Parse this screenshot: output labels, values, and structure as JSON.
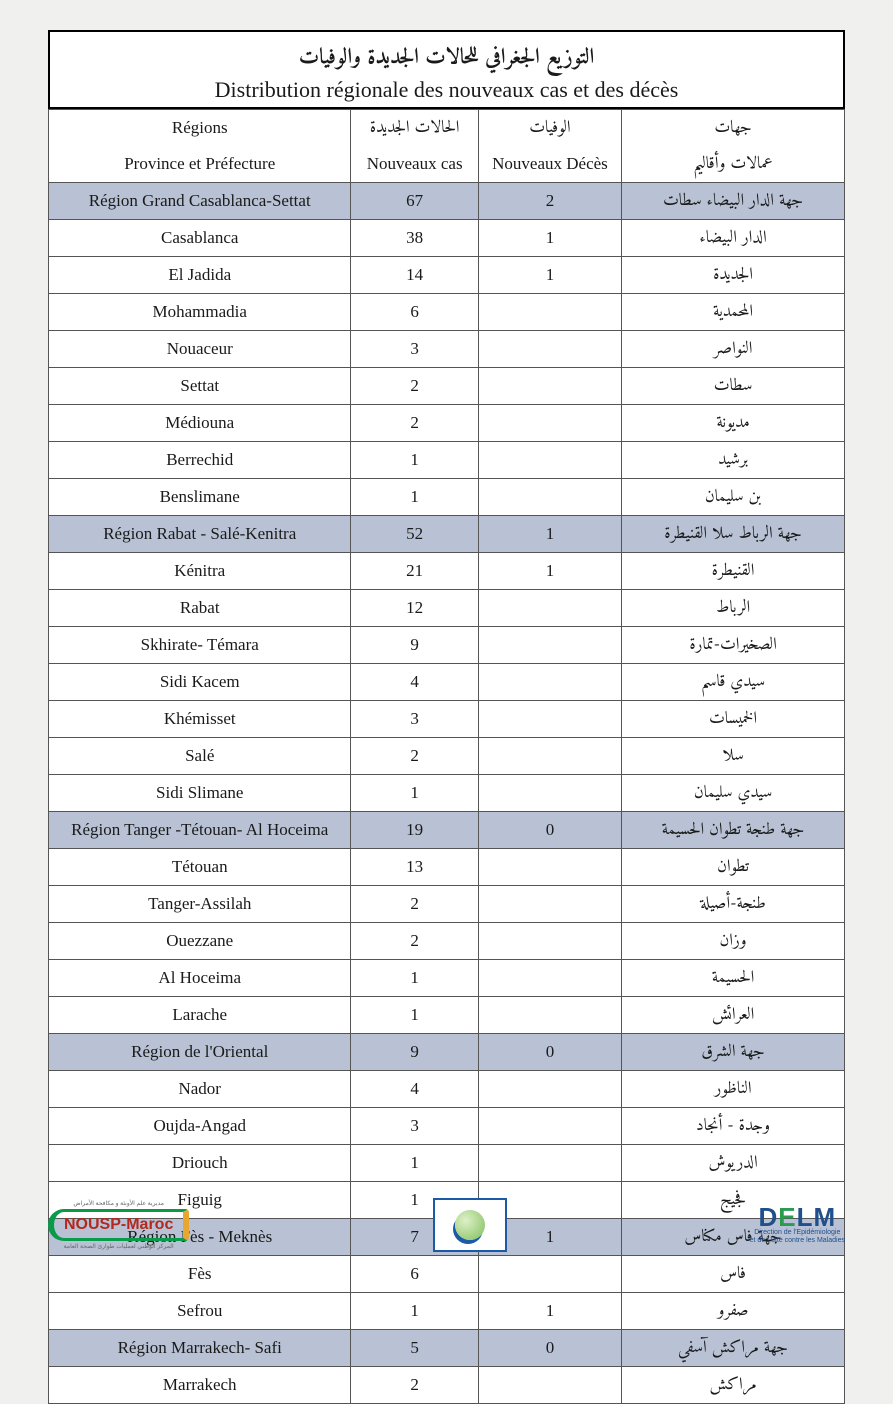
{
  "title_ar": "التوزيع الجغرافي للحالات الجديدة والوفيات",
  "title_fr": "Distribution régionale des nouveaux cas et des décès",
  "headers": {
    "fr_top": "Régions",
    "fr_bot": "Province et Préfecture",
    "cases_ar": "الحالات الجديدة",
    "cases_fr": "Nouveaux cas",
    "deaths_ar": "الوفيات",
    "deaths_fr": "Nouveaux Décès",
    "ar_top": "جهات",
    "ar_bot": "عمالات وأقاليم"
  },
  "colors": {
    "region_bg": "#b8c2d4",
    "border": "#555555",
    "page_bg": "#f0f0ee"
  },
  "rows": [
    {
      "type": "region",
      "fr": "Région Grand Casablanca-Settat",
      "cases": "67",
      "deaths": "2",
      "ar": "جهة الدار البيضاء سطات"
    },
    {
      "type": "data",
      "fr": "Casablanca",
      "cases": "38",
      "deaths": "1",
      "ar": "الدار البيضاء"
    },
    {
      "type": "data",
      "fr": "El Jadida",
      "cases": "14",
      "deaths": "1",
      "ar": "الجديدة"
    },
    {
      "type": "data",
      "fr": "Mohammadia",
      "cases": "6",
      "deaths": "",
      "ar": "المحمدية"
    },
    {
      "type": "data",
      "fr": "Nouaceur",
      "cases": "3",
      "deaths": "",
      "ar": "النواصر"
    },
    {
      "type": "data",
      "fr": "Settat",
      "cases": "2",
      "deaths": "",
      "ar": "سطات"
    },
    {
      "type": "data",
      "fr": "Médiouna",
      "cases": "2",
      "deaths": "",
      "ar": "مديونة"
    },
    {
      "type": "data",
      "fr": "Berrechid",
      "cases": "1",
      "deaths": "",
      "ar": "برشيد"
    },
    {
      "type": "data",
      "fr": "Benslimane",
      "cases": "1",
      "deaths": "",
      "ar": "بن سليمان"
    },
    {
      "type": "region",
      "fr": "Région Rabat - Salé-Kenitra",
      "cases": "52",
      "deaths": "1",
      "ar": "جهة الرباط سلا القنيطرة"
    },
    {
      "type": "data",
      "fr": "Kénitra",
      "cases": "21",
      "deaths": "1",
      "ar": "القنيطرة"
    },
    {
      "type": "data",
      "fr": "Rabat",
      "cases": "12",
      "deaths": "",
      "ar": "الرباط"
    },
    {
      "type": "data",
      "fr": "Skhirate- Témara",
      "cases": "9",
      "deaths": "",
      "ar": "الصخيرات-تمارة"
    },
    {
      "type": "data",
      "fr": "Sidi Kacem",
      "cases": "4",
      "deaths": "",
      "ar": "سيدي قاسم"
    },
    {
      "type": "data",
      "fr": "Khémisset",
      "cases": "3",
      "deaths": "",
      "ar": "الخميسات"
    },
    {
      "type": "data",
      "fr": "Salé",
      "cases": "2",
      "deaths": "",
      "ar": "سلا"
    },
    {
      "type": "data",
      "fr": "Sidi Slimane",
      "cases": "1",
      "deaths": "",
      "ar": "سيدي سليمان"
    },
    {
      "type": "region",
      "fr": "Région Tanger -Tétouan- Al Hoceima",
      "cases": "19",
      "deaths": "0",
      "ar": "جهة طنجة تطوان الحسيمة"
    },
    {
      "type": "data",
      "fr": "Tétouan",
      "cases": "13",
      "deaths": "",
      "ar": "تطوان"
    },
    {
      "type": "data",
      "fr": "Tanger-Assilah",
      "cases": "2",
      "deaths": "",
      "ar": "طنجة-أصيلة"
    },
    {
      "type": "data",
      "fr": "Ouezzane",
      "cases": "2",
      "deaths": "",
      "ar": "وزان"
    },
    {
      "type": "data",
      "fr": "Al Hoceima",
      "cases": "1",
      "deaths": "",
      "ar": "الحسيمة"
    },
    {
      "type": "data",
      "fr": "Larache",
      "cases": "1",
      "deaths": "",
      "ar": "العرائش"
    },
    {
      "type": "region",
      "fr": "Région de l'Oriental",
      "cases": "9",
      "deaths": "0",
      "ar": "جهة الشرق"
    },
    {
      "type": "data",
      "fr": "Nador",
      "cases": "4",
      "deaths": "",
      "ar": "الناظور"
    },
    {
      "type": "data",
      "fr": "Oujda-Angad",
      "cases": "3",
      "deaths": "",
      "ar": "وجدة - أنجاد"
    },
    {
      "type": "data",
      "fr": "Driouch",
      "cases": "1",
      "deaths": "",
      "ar": "الدريوش"
    },
    {
      "type": "data",
      "fr": "Figuig",
      "cases": "1",
      "deaths": "",
      "ar": "فجيج"
    },
    {
      "type": "region",
      "fr": "Région Fès - Meknès",
      "cases": "7",
      "deaths": "1",
      "ar": "جهة فاس مكناس"
    },
    {
      "type": "data",
      "fr": "Fès",
      "cases": "6",
      "deaths": "",
      "ar": "فاس"
    },
    {
      "type": "data",
      "fr": "Sefrou",
      "cases": "1",
      "deaths": "1",
      "ar": "صفرو"
    },
    {
      "type": "region",
      "fr": "Région Marrakech- Safi",
      "cases": "5",
      "deaths": "0",
      "ar": "جهة مراكش آسفي"
    },
    {
      "type": "data",
      "fr": "Marrakech",
      "cases": "2",
      "deaths": "",
      "ar": "مراكش"
    }
  ],
  "footer": {
    "nousp": "NOUSP-Maroc",
    "nousp_sub1": "مديرية علم الأوبئة و مكافحة الأمراض",
    "nousp_sub2": "المركز الوطني لعمليات طوارئ الصحة العامة",
    "delm": "DELM",
    "delm_sub1": "Direction de l'Epidémiologie",
    "delm_sub2": "et de Lutte contre les Maladies"
  }
}
